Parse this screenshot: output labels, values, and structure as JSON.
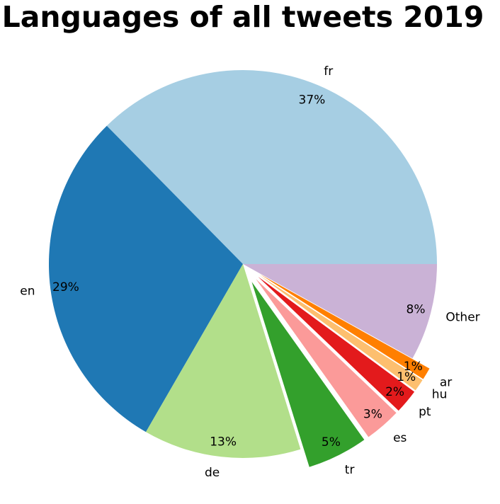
{
  "chart_data": {
    "type": "pie",
    "title": "Languages of all tweets 2019",
    "start_angle_deg": 0,
    "direction": "counterclockwise",
    "slices": [
      {
        "label": "fr",
        "value": 37,
        "pct_label": "37%",
        "color": "#a6cee3",
        "exploded": false
      },
      {
        "label": "en",
        "value": 29,
        "pct_label": "29%",
        "color": "#1f78b4",
        "exploded": false
      },
      {
        "label": "de",
        "value": 13,
        "pct_label": "13%",
        "color": "#b2df8a",
        "exploded": false
      },
      {
        "label": "tr",
        "value": 5,
        "pct_label": "5%",
        "color": "#33a02c",
        "exploded": true
      },
      {
        "label": "es",
        "value": 3,
        "pct_label": "3%",
        "color": "#fb9a99",
        "exploded": true
      },
      {
        "label": "pt",
        "value": 2,
        "pct_label": "2%",
        "color": "#e31a1c",
        "exploded": true
      },
      {
        "label": "hu",
        "value": 1,
        "pct_label": "1%",
        "color": "#fdbf6f",
        "exploded": true
      },
      {
        "label": "ar",
        "value": 1,
        "pct_label": "1%",
        "color": "#ff7f00",
        "exploded": true
      },
      {
        "label": "Other",
        "value": 8,
        "pct_label": "8%",
        "color": "#cab2d6",
        "exploded": false
      }
    ]
  }
}
